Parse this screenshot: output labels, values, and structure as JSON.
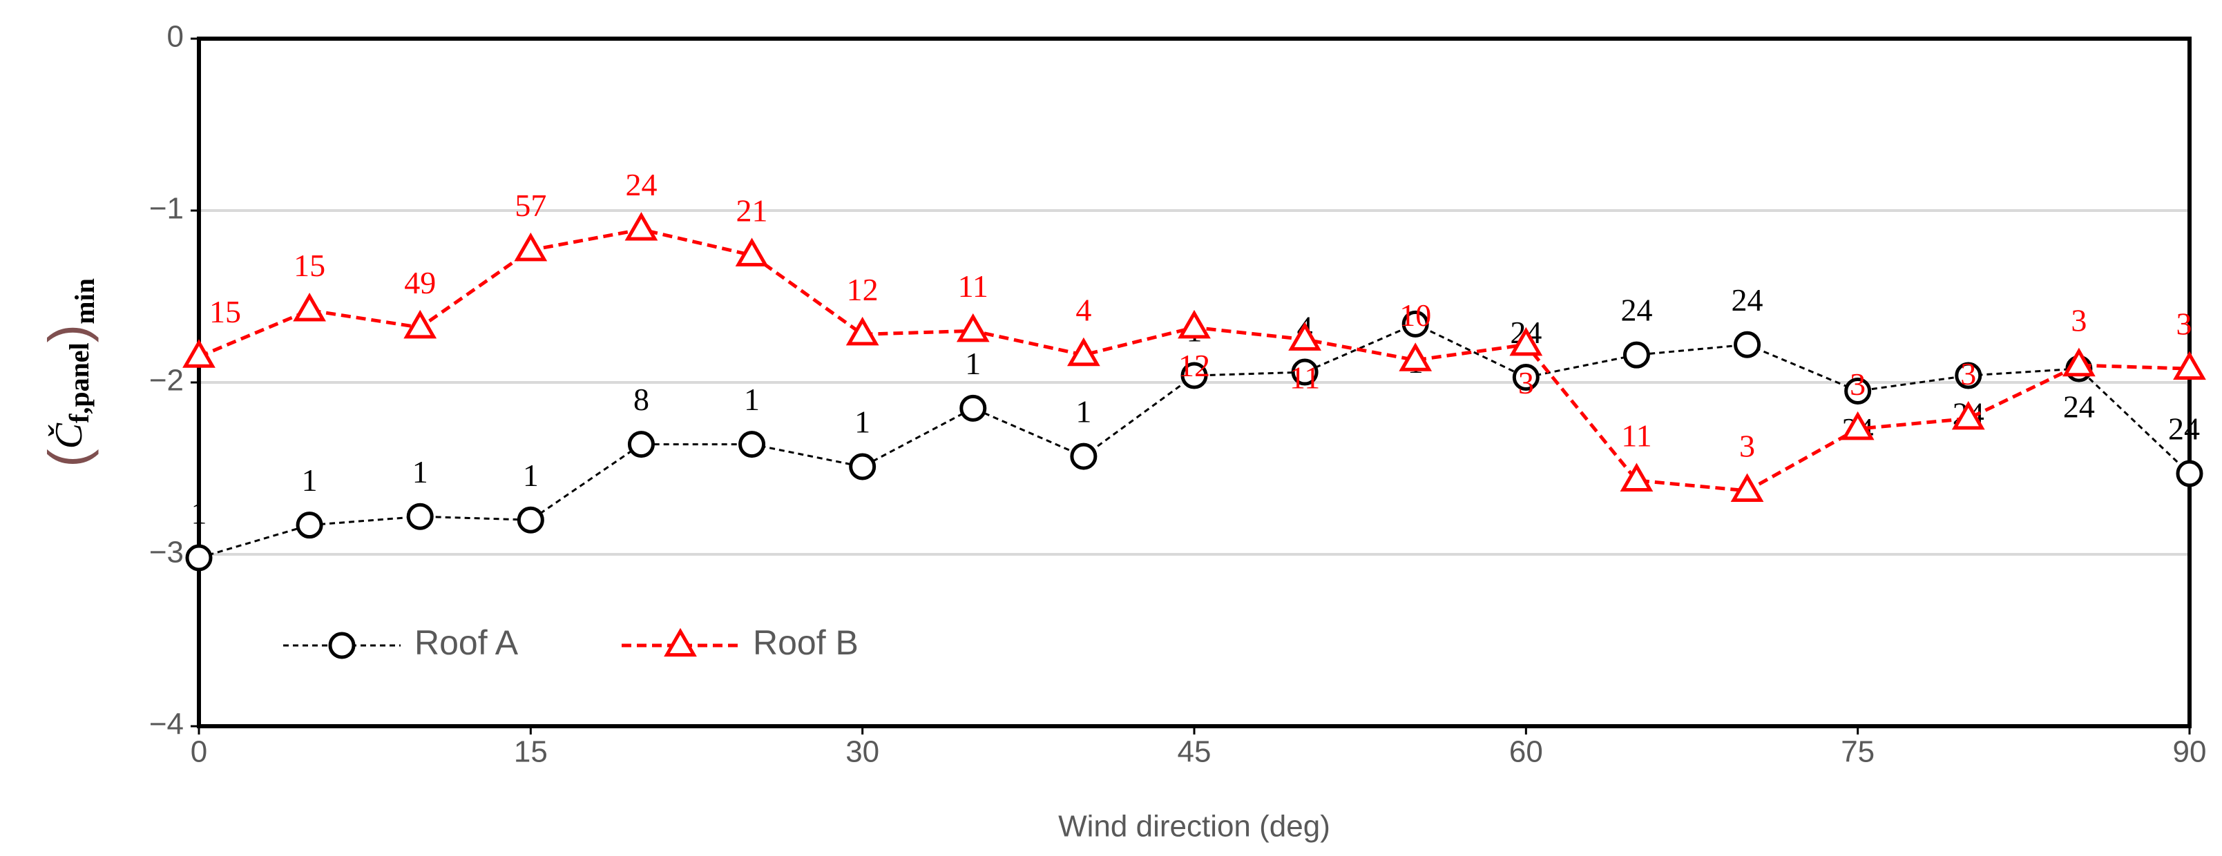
{
  "chart_data": {
    "type": "line",
    "xlabel": "Wind direction (deg)",
    "ylabel": {
      "base": "Č",
      "sub": "f,panel",
      "outer_sub": "min"
    },
    "x": [
      0,
      5,
      10,
      15,
      20,
      25,
      30,
      35,
      40,
      45,
      50,
      55,
      60,
      65,
      70,
      75,
      80,
      85,
      90
    ],
    "series": [
      {
        "name": "Roof A",
        "color": "#000000",
        "marker": "circle",
        "values": [
          -3.02,
          -2.83,
          -2.78,
          -2.8,
          -2.36,
          -2.36,
          -2.49,
          -2.15,
          -2.43,
          -1.96,
          -1.94,
          -1.66,
          -1.97,
          -1.84,
          -1.78,
          -2.05,
          -1.96,
          -1.92,
          -2.53
        ],
        "annotations": [
          1,
          1,
          1,
          1,
          8,
          1,
          1,
          1,
          1,
          1,
          4,
          1,
          24,
          24,
          24,
          24,
          24,
          24,
          24
        ]
      },
      {
        "name": "Roof B",
        "color": "#ff0000",
        "marker": "triangle",
        "values": [
          -1.85,
          -1.58,
          -1.68,
          -1.23,
          -1.11,
          -1.26,
          -1.72,
          -1.7,
          -1.84,
          -1.68,
          -1.75,
          -1.87,
          -1.78,
          -2.57,
          -2.63,
          -2.27,
          -2.21,
          -1.9,
          -1.92
        ],
        "annotations": [
          15,
          15,
          49,
          57,
          24,
          21,
          12,
          11,
          4,
          12,
          11,
          10,
          3,
          11,
          3,
          3,
          3,
          3,
          3
        ]
      }
    ],
    "xlim": [
      0,
      90
    ],
    "xticks": [
      0,
      15,
      30,
      45,
      60,
      75,
      90
    ],
    "ylim": [
      -4,
      0
    ],
    "yticks": [
      {
        "value": -4,
        "label": "−4"
      },
      {
        "value": -3,
        "label": "−3"
      },
      {
        "value": -2,
        "label": "−2"
      },
      {
        "value": -1,
        "label": "−1"
      },
      0
    ],
    "grid": true,
    "legend": "lower left"
  }
}
